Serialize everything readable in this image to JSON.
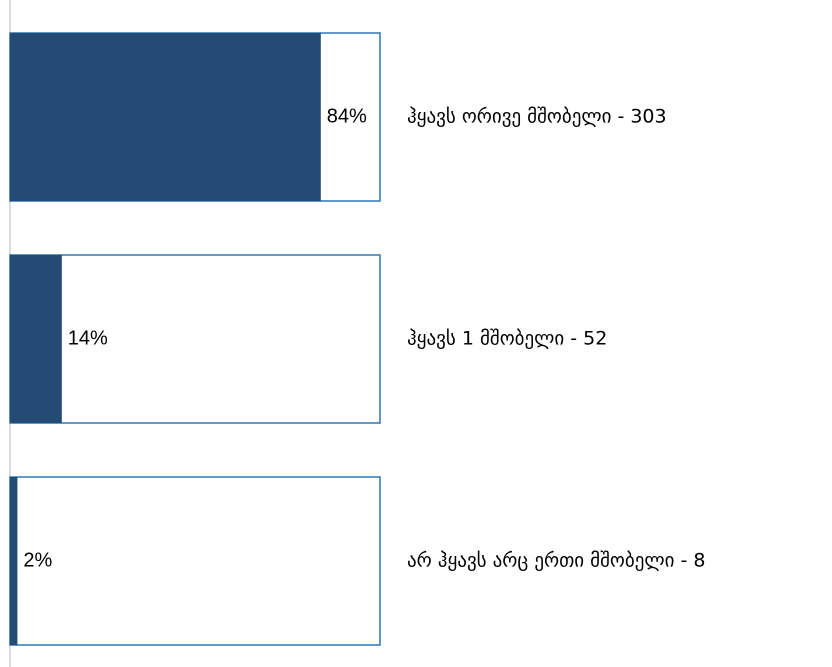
{
  "chart_data": {
    "type": "bar",
    "orientation": "horizontal",
    "categories": [
      "ჰყავს ორივე მშობელი - 303",
      "ჰყავს 1 მშობელი - 52",
      "არ ჰყავს არც ერთი მშობელი - 8"
    ],
    "values": [
      84,
      14,
      2
    ],
    "value_labels": [
      "84%",
      "14%",
      "2%"
    ],
    "color": "#234b73",
    "outline_color": "#2e75b6",
    "xlim": [
      0,
      100
    ]
  }
}
